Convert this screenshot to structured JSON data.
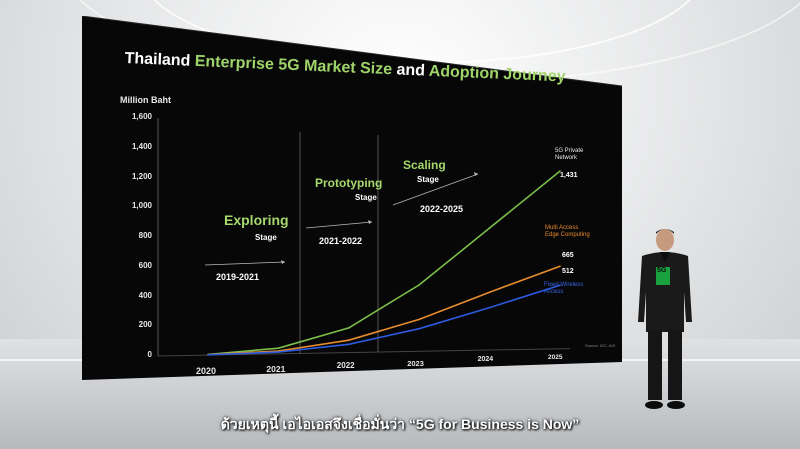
{
  "chart_data": {
    "type": "line",
    "title": "Thailand Enterprise 5G Market Size and Adoption Journey",
    "ylabel": "Million Baht",
    "x": [
      "2020",
      "2021",
      "2022",
      "2023",
      "2024",
      "2025"
    ],
    "ylim": [
      0,
      1600
    ],
    "yticks": [
      "0",
      "200",
      "400",
      "600",
      "800",
      "1,000",
      "1,200",
      "1,400",
      "1,600"
    ],
    "series": [
      {
        "name": "5G Private Network",
        "color": "#7bbf4a",
        "values": [
          5,
          40,
          180,
          500,
          950,
          1431
        ]
      },
      {
        "name": "Multi Access Edge Computing",
        "color": "#e88c2e",
        "values": [
          3,
          20,
          90,
          240,
          450,
          665
        ]
      },
      {
        "name": "Fixed Wireless Access",
        "color": "#2d5be0",
        "values": [
          2,
          12,
          60,
          170,
          330,
          512
        ]
      }
    ],
    "end_values": [
      "1,431",
      "665",
      "512"
    ],
    "stages": [
      {
        "name": "Exploring",
        "sub": "Stage",
        "years": "2019-2021"
      },
      {
        "name": "Prototyping",
        "sub": "Stage",
        "years": "2021-2022"
      },
      {
        "name": "Scaling",
        "sub": "Stage",
        "years": "2022-2025"
      }
    ],
    "source": "Source: IDC, AIS"
  },
  "title_parts": {
    "a": "Thailand ",
    "b": "Enterprise 5G Market Size",
    "c": " and ",
    "d": "Adoption Journey"
  },
  "subtitle": "ด้วยเหตุนี้ เอไอเอสจึงเชื่อมั่นว่า “5G for Business is Now”",
  "badge": "5G"
}
